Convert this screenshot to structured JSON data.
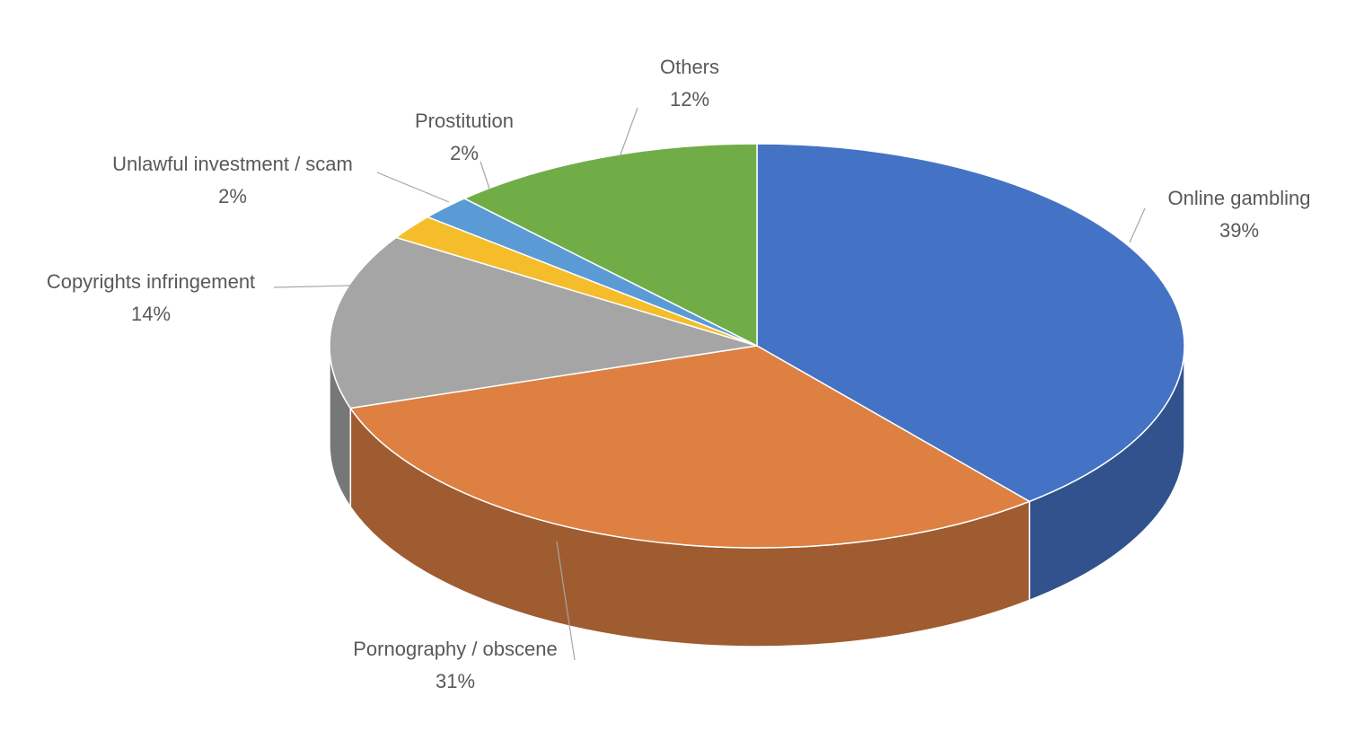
{
  "chart_data": {
    "type": "pie3d",
    "categories": [
      "Online gambling",
      "Pornography / obscene",
      "Copyrights infringement",
      "Unlawful investment / scam",
      "Prostitution",
      "Others"
    ],
    "values": [
      39,
      31,
      14,
      2,
      2,
      12
    ],
    "value_labels": [
      "39%",
      "31%",
      "14%",
      "2%",
      "2%",
      "12%"
    ],
    "colors": [
      "#4472c4",
      "#dd8042",
      "#a5a5a5",
      "#f5bd2a",
      "#5b9bd5",
      "#70ad47"
    ]
  }
}
